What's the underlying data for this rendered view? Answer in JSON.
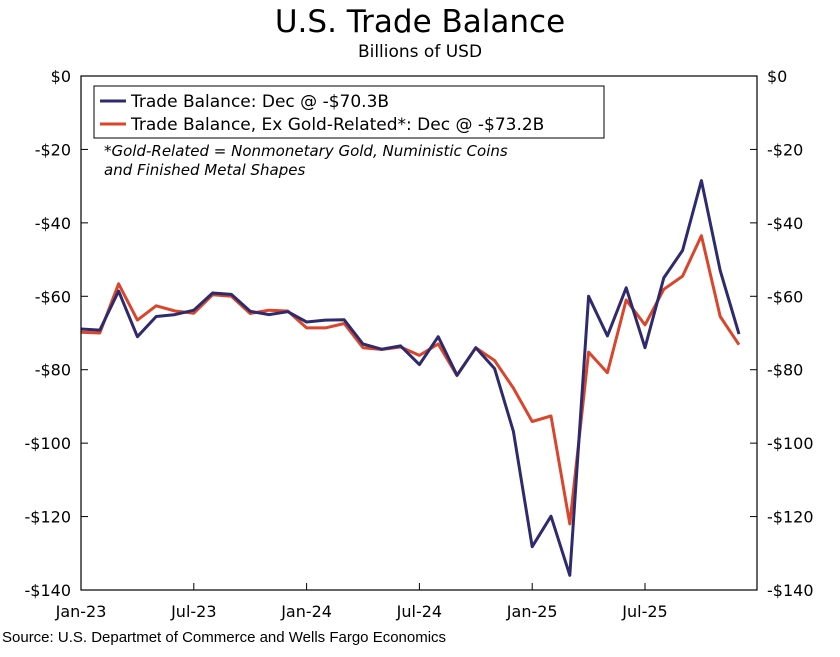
{
  "title": "U.S. Trade Balance",
  "subtitle": "Billions of USD",
  "source": "Source: U.S. Departmet of Commerce and Wells Fargo Economics",
  "legend": [
    {
      "label": "Trade Balance: Dec @ -$70.3B",
      "color": "#2e2a6e"
    },
    {
      "label": "Trade Balance, Ex Gold-Related*: Dec @ -$73.2B",
      "color": "#d9462b"
    }
  ],
  "note": [
    "*Gold-Related = Nonmonetary Gold, Nuministic Coins",
    "and Finished Metal Shapes"
  ],
  "chart_data": {
    "type": "line",
    "title": "U.S. Trade Balance",
    "ylabel": "Billions of USD",
    "ylim": [
      -140,
      0
    ],
    "yticks": [
      0,
      -20,
      -40,
      -60,
      -80,
      -100,
      -120,
      -140
    ],
    "ytick_labels": [
      "$0",
      "-$20",
      "-$40",
      "-$60",
      "-$80",
      "-$100",
      "-$120",
      "-$140"
    ],
    "xtick_labels": [
      "Jan-23",
      "Jul-23",
      "Jan-24",
      "Jul-24",
      "Jan-25",
      "Jul-25"
    ],
    "xtick_index": [
      0,
      6,
      12,
      18,
      24,
      30
    ],
    "x": [
      "Jan-23",
      "Feb-23",
      "Mar-23",
      "Apr-23",
      "May-23",
      "Jun-23",
      "Jul-23",
      "Aug-23",
      "Sep-23",
      "Oct-23",
      "Nov-23",
      "Dec-23",
      "Jan-24",
      "Feb-24",
      "Mar-24",
      "Apr-24",
      "May-24",
      "Jun-24",
      "Jul-24",
      "Aug-24",
      "Sep-24",
      "Oct-24",
      "Nov-24",
      "Dec-24",
      "Jan-25",
      "Feb-25",
      "Mar-25",
      "Apr-25",
      "May-25",
      "Jun-25",
      "Jul-25",
      "Aug-25",
      "Sep-25",
      "Oct-25",
      "Nov-25",
      "Dec-25"
    ],
    "series": [
      {
        "name": "Trade Balance",
        "values": [
          -68.9,
          -69.2,
          -58.6,
          -71.0,
          -65.5,
          -65.0,
          -63.8,
          -59.1,
          -59.5,
          -64.1,
          -65.0,
          -64.2,
          -67.0,
          -66.5,
          -66.4,
          -73.0,
          -74.4,
          -73.5,
          -78.6,
          -71.0,
          -81.5,
          -74.0,
          -79.7,
          -96.8,
          -128.2,
          -119.9,
          -136.0,
          -60.0,
          -70.8,
          -57.7,
          -74.0,
          -55.0,
          -47.5,
          -28.5,
          -53.0,
          -70.3
        ]
      },
      {
        "name": "Trade Balance, Ex Gold-Related",
        "values": [
          -69.8,
          -70.0,
          -56.6,
          -66.5,
          -62.6,
          -64.0,
          -64.6,
          -59.6,
          -60.0,
          -64.7,
          -63.8,
          -64.0,
          -68.6,
          -68.6,
          -67.4,
          -74.0,
          -74.5,
          -73.8,
          -76.1,
          -73.0,
          -81.6,
          -74.0,
          -77.5,
          -85.0,
          -94.1,
          -92.6,
          -122.0,
          -75.2,
          -80.8,
          -61.0,
          -67.8,
          -58.1,
          -54.5,
          -43.5,
          -65.5,
          -73.2
        ]
      }
    ]
  }
}
